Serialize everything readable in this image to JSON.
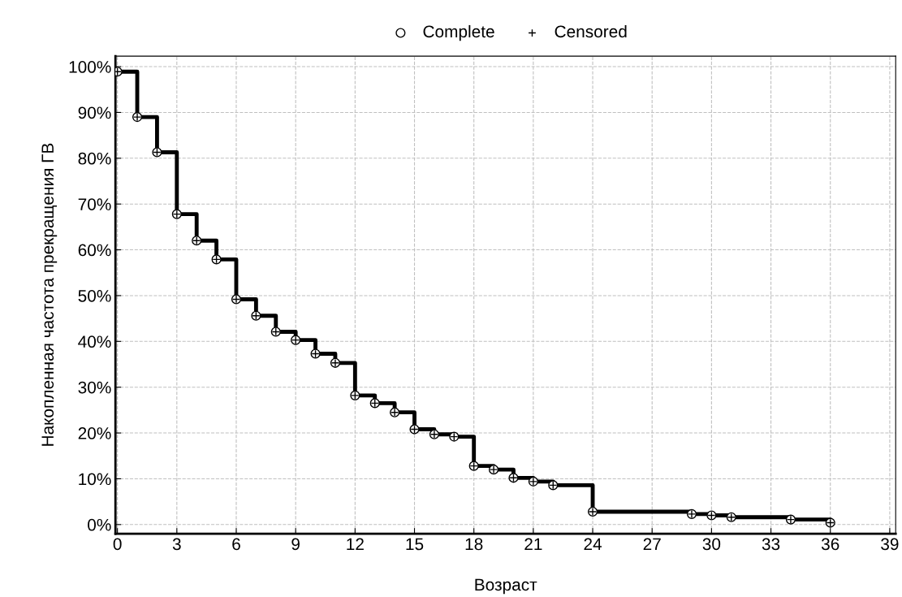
{
  "chart_data": {
    "type": "step",
    "xlabel": "Возраст",
    "ylabel": "Накопленная частота прекращения ГВ",
    "x": [
      0,
      1,
      2,
      3,
      4,
      5,
      6,
      7,
      8,
      9,
      10,
      11,
      12,
      13,
      14,
      15,
      16,
      17,
      18,
      19,
      20,
      21,
      22,
      24,
      29,
      30,
      31,
      34,
      36
    ],
    "series": [
      {
        "color": "#000000",
        "values": [
          98.9,
          89.0,
          81.3,
          67.8,
          62.0,
          57.9,
          49.2,
          45.6,
          42.1,
          40.3,
          37.3,
          35.3,
          28.2,
          26.5,
          24.5,
          20.8,
          19.7,
          19.2,
          12.8,
          12.0,
          10.2,
          9.4,
          8.6,
          2.8,
          2.3,
          2.0,
          1.6,
          1.1,
          0.4
        ]
      },
      {
        "type": "scatter",
        "name": "Complete",
        "marker": "circle",
        "color": "#000000",
        "values": [
          98.9,
          89.0,
          81.3,
          67.8,
          62.0,
          57.9,
          49.2,
          45.6,
          42.1,
          40.3,
          37.3,
          35.3,
          28.2,
          26.5,
          24.5,
          20.8,
          19.7,
          19.2,
          12.8,
          12.0,
          10.2,
          9.4,
          8.6,
          2.8,
          2.3,
          2.0,
          1.6,
          1.1,
          0.4
        ]
      },
      {
        "type": "scatter",
        "name": "Censored",
        "marker": "cross",
        "color": "#000000",
        "values": [
          98.9,
          89.0,
          81.3,
          67.8,
          62.0,
          57.9,
          49.2,
          45.6,
          42.1,
          40.3,
          37.3,
          35.3,
          28.2,
          26.5,
          24.5,
          20.8,
          19.7,
          19.2,
          12.8,
          12.0,
          10.2,
          9.4,
          8.6,
          2.8,
          2.3,
          2.0,
          1.6,
          1.1,
          0.4
        ]
      }
    ],
    "xlim": [
      -0.1,
      39.3
    ],
    "xticks": [
      0,
      3,
      6,
      9,
      12,
      15,
      18,
      21,
      24,
      27,
      30,
      33,
      36,
      39
    ],
    "ylim": [
      -2,
      102.3
    ],
    "yticks": [
      {
        "value": 0,
        "label": "0%"
      },
      {
        "value": 10,
        "label": "10%"
      },
      {
        "value": 20,
        "label": "20%"
      },
      {
        "value": 30,
        "label": "30%"
      },
      {
        "value": 40,
        "label": "40%"
      },
      {
        "value": 50,
        "label": "50%"
      },
      {
        "value": 60,
        "label": "60%"
      },
      {
        "value": 70,
        "label": "70%"
      },
      {
        "value": 80,
        "label": "80%"
      },
      {
        "value": 90,
        "label": "90%"
      },
      {
        "value": 100,
        "label": "100%"
      }
    ],
    "grid": true,
    "legend": "top",
    "line_style": "solid"
  }
}
